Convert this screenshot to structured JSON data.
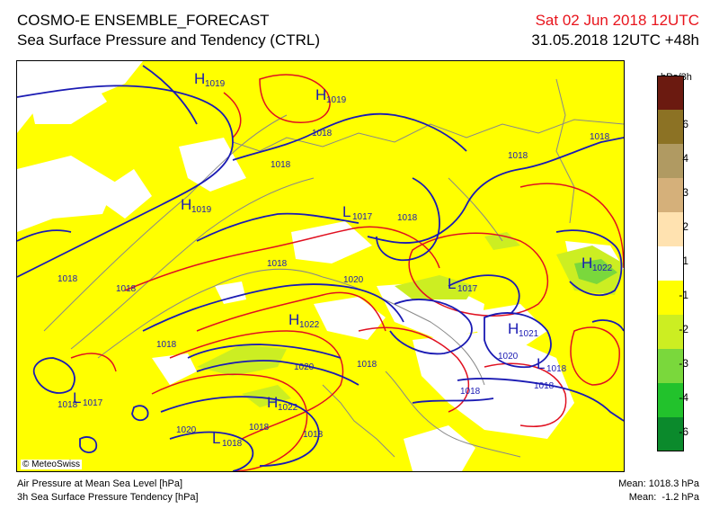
{
  "header": {
    "title": "COSMO-E ENSEMBLE_FORECAST",
    "subtitle": "Sea Surface Pressure and Tendency (CTRL)",
    "valid_time": "Sat 02 Jun 2018 12UTC",
    "run_info": "31.05.2018 12UTC +48h"
  },
  "legend": {
    "unit": "hPa/3h",
    "labels": [
      "6",
      "4",
      "3",
      "2",
      "1",
      "-1",
      "-2",
      "-3",
      "-4",
      "-6"
    ],
    "colors": [
      "#6b1a10",
      "#8c7224",
      "#b09a62",
      "#d5b07a",
      "#ffe2b0",
      "#ffffff",
      "#ffff00",
      "#ccee22",
      "#7ad83c",
      "#22c22c",
      "#0b8a2c"
    ]
  },
  "map": {
    "credit": "© MeteoSwiss",
    "isobar_labels": [
      "1018",
      "1018",
      "1018",
      "1018",
      "1018",
      "1018",
      "1018",
      "1018",
      "1018",
      "1018",
      "1018",
      "1018",
      "1018",
      "1018",
      "1018",
      "1020",
      "1020",
      "1020",
      "1020"
    ],
    "centers": [
      {
        "letter": "H",
        "value": "1019"
      },
      {
        "letter": "H",
        "value": "1019"
      },
      {
        "letter": "H",
        "value": "1019"
      },
      {
        "letter": "L",
        "value": "1017"
      },
      {
        "letter": "L",
        "value": "1017"
      },
      {
        "letter": "H",
        "value": "1022"
      },
      {
        "letter": "H",
        "value": "1022"
      },
      {
        "letter": "H",
        "value": "1021"
      },
      {
        "letter": "L",
        "value": "1017"
      },
      {
        "letter": "H",
        "value": "1022"
      },
      {
        "letter": "L",
        "value": "1018"
      },
      {
        "letter": "L",
        "value": "1018"
      }
    ],
    "colors": {
      "isobar": "#1a1ab3",
      "tendency_positive": "#e01020",
      "background": "#ffff00",
      "topography": "#888888"
    }
  },
  "footer": {
    "line1": "Air Pressure at Mean Sea Level [hPa]",
    "line2": "3h Sea Surface Pressure Tendency [hPa]",
    "mean1": "Mean: 1018.3 hPa",
    "mean2": "Mean:  -1.2 hPa"
  }
}
